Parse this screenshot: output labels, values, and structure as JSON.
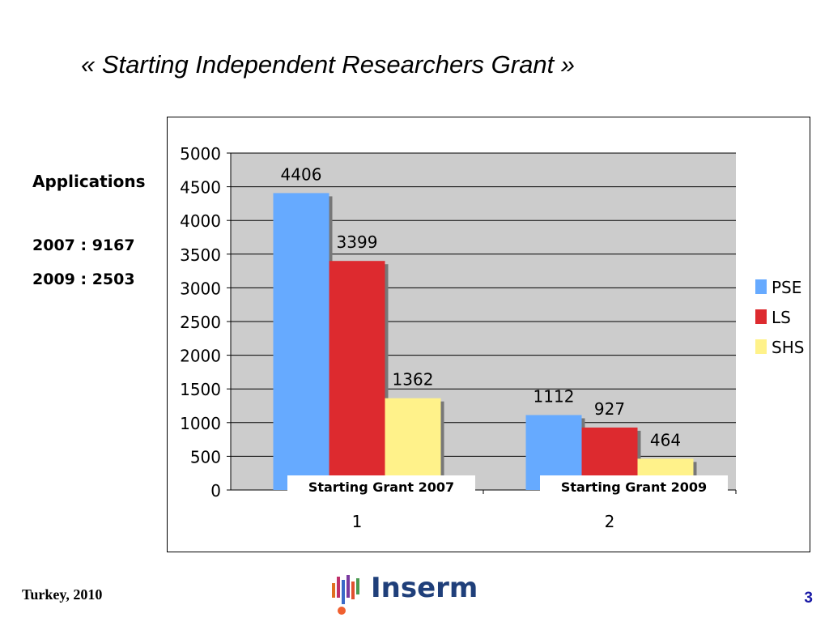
{
  "slide": {
    "title": "« Starting Independent Researchers Grant »",
    "applications": {
      "heading": "Applications",
      "lines": [
        "2007 : 9167",
        "2009 : 2503"
      ]
    },
    "footer_left": "Turkey, 2010",
    "page_number": "3",
    "logo_text": "Inserm"
  },
  "chart_data": {
    "type": "bar",
    "categories": [
      "1",
      "2"
    ],
    "category_captions": [
      "Starting Grant 2007",
      "Starting Grant 2009"
    ],
    "series": [
      {
        "name": "PSE",
        "values": [
          4406,
          1112
        ],
        "color": "#66aaff"
      },
      {
        "name": "LS",
        "values": [
          3399,
          927
        ],
        "color": "#dd2a2f"
      },
      {
        "name": "SHS",
        "values": [
          1362,
          464
        ],
        "color": "#fff28a"
      }
    ],
    "ylim": [
      0,
      5000
    ],
    "yticks": [
      0,
      500,
      1000,
      1500,
      2000,
      2500,
      3000,
      3500,
      4000,
      4500,
      5000
    ],
    "grid": true,
    "legend_position": "right",
    "plot_background": "#cccccc"
  }
}
